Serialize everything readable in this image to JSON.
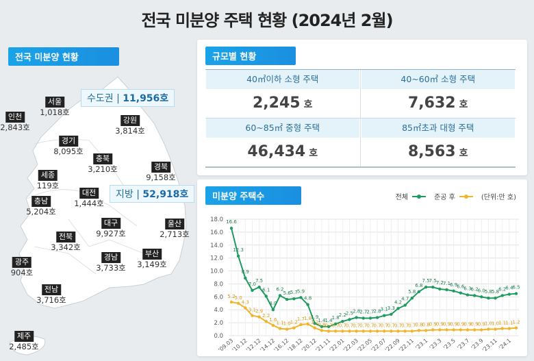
{
  "title": "전국 미분양 주택 현황  (2024년 2월)",
  "map_section": {
    "label": "전국 미분양 현황",
    "capital": {
      "label": "수도권",
      "value": "11,956호"
    },
    "local": {
      "label": "지방",
      "value": "52,918호"
    },
    "regions": [
      {
        "name": "서울",
        "value": "1,018호"
      },
      {
        "name": "인천",
        "value": "2,843호"
      },
      {
        "name": "경기",
        "value": "8,095호"
      },
      {
        "name": "강원",
        "value": "3,814호"
      },
      {
        "name": "충북",
        "value": "3,210호"
      },
      {
        "name": "경북",
        "value": "9,158호"
      },
      {
        "name": "세종",
        "value": "119호"
      },
      {
        "name": "대전",
        "value": "1,444호"
      },
      {
        "name": "충남",
        "value": "5,204호"
      },
      {
        "name": "대구",
        "value": "9,927호"
      },
      {
        "name": "울산",
        "value": "2,713호"
      },
      {
        "name": "전북",
        "value": "3,342호"
      },
      {
        "name": "경남",
        "value": "3,733호"
      },
      {
        "name": "부산",
        "value": "3,149호"
      },
      {
        "name": "광주",
        "value": "904호"
      },
      {
        "name": "전남",
        "value": "3,716호"
      },
      {
        "name": "제주",
        "value": "2,485호"
      }
    ]
  },
  "size_section": {
    "label": "규모별 현황",
    "unit": "호",
    "items": [
      {
        "label": "40㎡이하 소형 주택",
        "value": "2,245"
      },
      {
        "label": "40~60㎡ 소형 주택",
        "value": "7,632"
      },
      {
        "label": "60~85㎡ 중형 주택",
        "value": "46,434"
      },
      {
        "label": "85㎡초과 대형 주택",
        "value": "8,563"
      }
    ]
  },
  "chart_section": {
    "label": "미분양 주택수"
  },
  "chart_data": {
    "type": "line",
    "unit_label": "(단위:만 호)",
    "ylim": [
      0,
      18
    ],
    "grid": true,
    "legend_placement": "top-right",
    "yticks": [
      "0.0",
      "2.0",
      "4.0",
      "6.0",
      "8.0",
      "10.0",
      "12.0",
      "14.0",
      "16.0",
      "18.0"
    ],
    "categories": [
      "'09.03",
      "",
      "'10.12",
      "",
      "'12.12",
      "",
      "'14.12",
      "",
      "'16.12",
      "",
      "'18.12",
      "",
      "'20.12",
      "",
      "'21.11",
      "",
      "'22.01",
      "",
      "'22.03",
      "",
      "'22.05",
      "",
      "'22.07",
      "",
      "'22.09",
      "",
      "'22.11",
      "",
      "'23.1",
      "",
      "'23.3",
      "",
      "'23.5",
      "",
      "'23.7",
      "",
      "'23.9",
      "",
      "'23.11",
      "",
      "'24.1",
      ""
    ],
    "series": [
      {
        "name": "전체",
        "color": "#1e9b5e",
        "values": [
          16.6,
          12.3,
          8.9,
          7.0,
          7.5,
          6.1,
          4.0,
          6.2,
          5.6,
          5.7,
          5.9,
          4.8,
          1.9,
          1.4,
          1.4,
          1.8,
          2.2,
          2.5,
          2.8,
          2.7,
          2.7,
          2.8,
          3.1,
          3.3,
          4.2,
          4.7,
          5.8,
          6.8,
          7.5,
          7.5,
          7.2,
          7.1,
          6.9,
          6.6,
          6.3,
          6.2,
          6.0,
          5.8,
          5.8,
          6.2,
          6.4,
          6.5
        ]
      },
      {
        "name": "준공 후",
        "color": "#f0b429",
        "values": [
          5.2,
          5.0,
          4.3,
          3.1,
          2.9,
          2.2,
          1.6,
          1.1,
          1.0,
          1.2,
          1.7,
          1.8,
          1.2,
          0.8,
          0.7,
          0.7,
          0.7,
          0.7,
          0.7,
          0.7,
          0.7,
          0.7,
          0.7,
          0.7,
          0.7,
          0.7,
          0.7,
          0.8,
          0.8,
          0.9,
          0.9,
          0.9,
          0.9,
          0.9,
          0.9,
          0.9,
          0.9,
          1.0,
          1.0,
          1.1,
          1.1,
          1.2
        ]
      }
    ]
  }
}
